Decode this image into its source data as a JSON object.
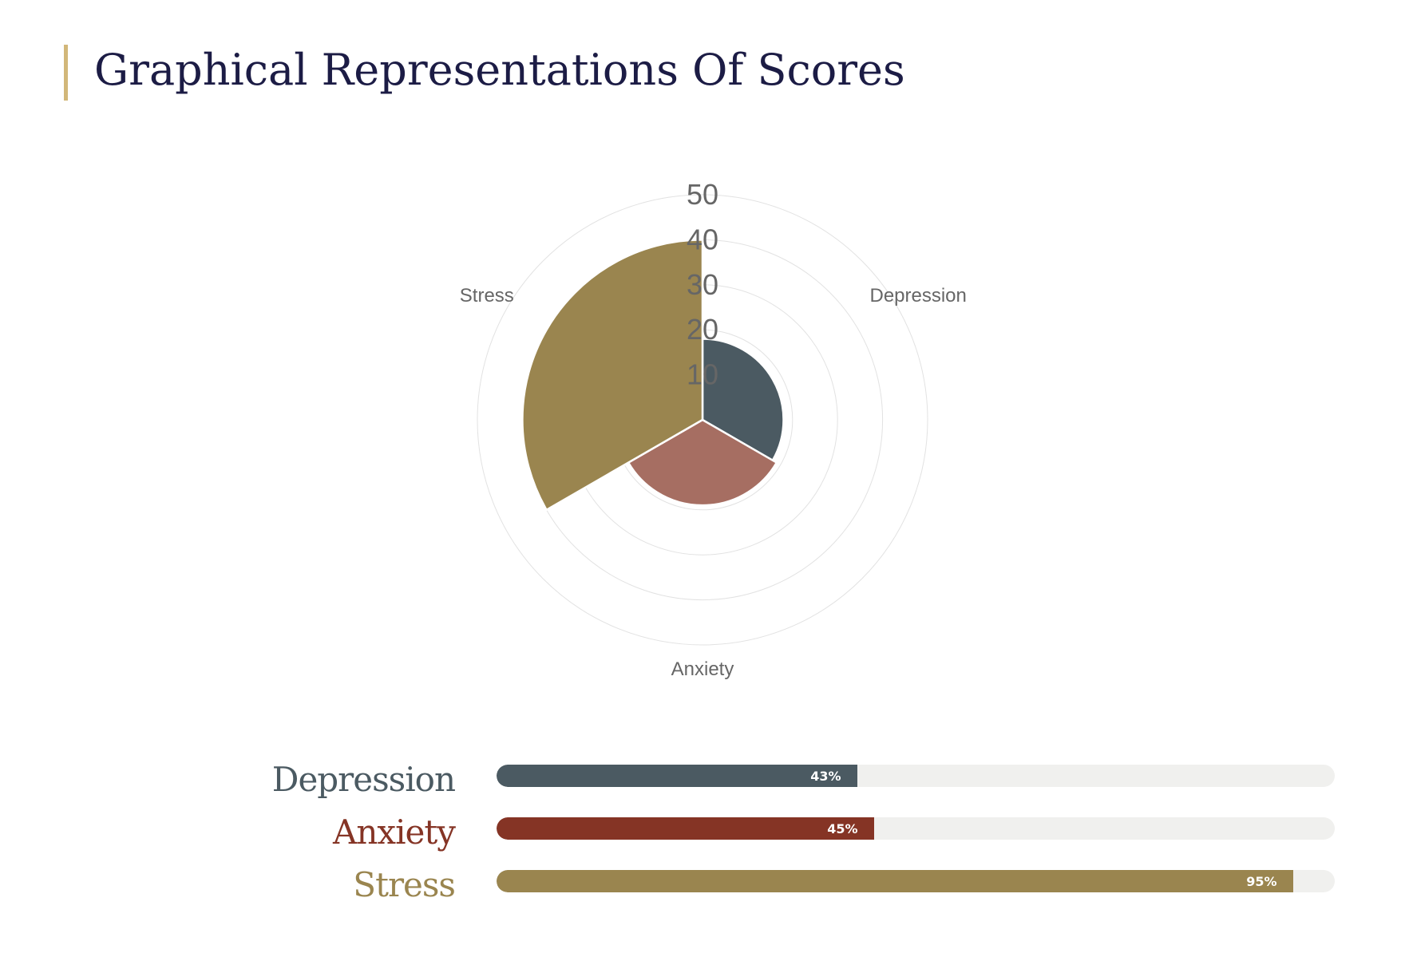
{
  "page": {
    "title": "Graphical Representations Of Scores"
  },
  "colors": {
    "title": "#1c1c45",
    "accent_bar": "#d2b779",
    "grid": "#e2e2e2",
    "axis_label": "#666666",
    "track": "#f0f0ee",
    "depression": "#4b5a62",
    "anxiety": "#a66e62",
    "anxiety_bar": "#853425",
    "stress": "#9a854f"
  },
  "chart_data": [
    {
      "type": "polar-area",
      "categories": [
        "Depression",
        "Anxiety",
        "Stress"
      ],
      "values": [
        18,
        19,
        40
      ],
      "r_ticks": [
        "10",
        "20",
        "30",
        "40",
        "50"
      ],
      "rlim": [
        0,
        50
      ],
      "grid": true
    },
    {
      "type": "bar",
      "orientation": "horizontal",
      "categories": [
        "Depression",
        "Anxiety",
        "Stress"
      ],
      "values": [
        43,
        45,
        95
      ],
      "labels": [
        "43%",
        "45%",
        "95%"
      ],
      "xlim": [
        0,
        100
      ]
    }
  ]
}
